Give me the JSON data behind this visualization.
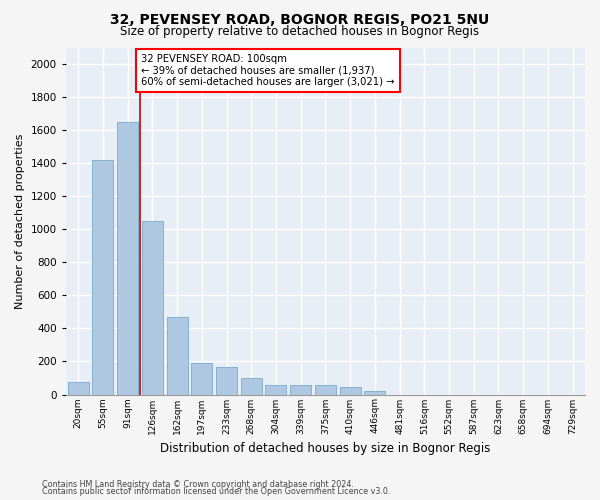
{
  "title_line1": "32, PEVENSEY ROAD, BOGNOR REGIS, PO21 5NU",
  "title_line2": "Size of property relative to detached houses in Bognor Regis",
  "xlabel": "Distribution of detached houses by size in Bognor Regis",
  "ylabel": "Number of detached properties",
  "footnote1": "Contains HM Land Registry data © Crown copyright and database right 2024.",
  "footnote2": "Contains public sector information licensed under the Open Government Licence v3.0.",
  "annotation_line1": "32 PEVENSEY ROAD: 100sqm",
  "annotation_line2": "← 39% of detached houses are smaller (1,937)",
  "annotation_line3": "60% of semi-detached houses are larger (3,021) →",
  "bar_color": "#adc8e0",
  "bar_edge_color": "#7aaacf",
  "background_color": "#e8eef5",
  "grid_color": "#ffffff",
  "redline_color": "#cc0000",
  "bar_labels": [
    "20sqm",
    "55sqm",
    "91sqm",
    "126sqm",
    "162sqm",
    "197sqm",
    "233sqm",
    "268sqm",
    "304sqm",
    "339sqm",
    "375sqm",
    "410sqm",
    "446sqm",
    "481sqm",
    "516sqm",
    "552sqm",
    "587sqm",
    "623sqm",
    "658sqm",
    "694sqm",
    "729sqm"
  ],
  "bar_heights": [
    75,
    1420,
    1650,
    1050,
    470,
    190,
    165,
    100,
    60,
    55,
    55,
    45,
    20,
    0,
    0,
    0,
    0,
    0,
    0,
    0,
    0
  ],
  "redline_bin": 2.5,
  "ylim": [
    0,
    2100
  ],
  "yticks": [
    0,
    200,
    400,
    600,
    800,
    1000,
    1200,
    1400,
    1600,
    1800,
    2000
  ],
  "fig_bg": "#f5f5f5"
}
